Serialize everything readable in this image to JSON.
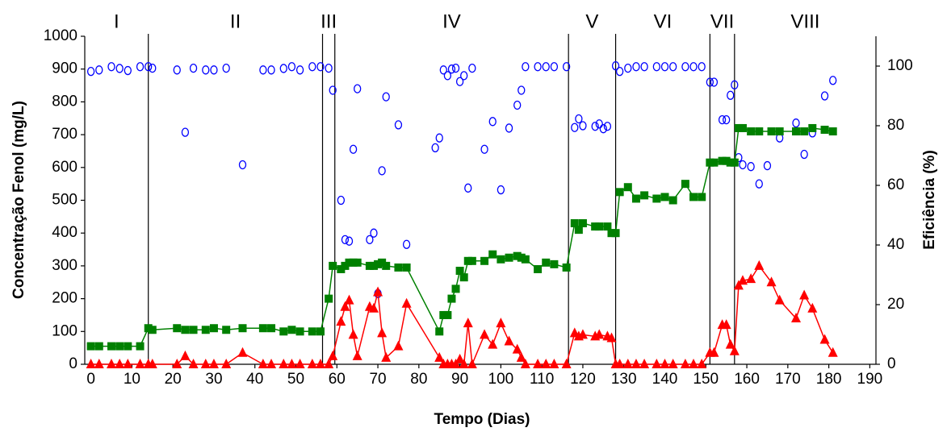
{
  "chart_data": {
    "type": "line",
    "xlabel": "Tempo (Dias)",
    "ylabel": "Concentração Fenol (mg/L)",
    "y2label": "Eficiência (%)",
    "xlim": [
      -1.5,
      191.5
    ],
    "xticks": [
      0,
      10,
      20,
      30,
      40,
      50,
      60,
      70,
      80,
      90,
      100,
      110,
      120,
      130,
      140,
      150,
      160,
      170,
      180,
      190
    ],
    "ylim": [
      0,
      1000
    ],
    "yticks": [
      0,
      100,
      200,
      300,
      400,
      500,
      600,
      700,
      800,
      900,
      1000
    ],
    "y2lim": [
      0,
      110
    ],
    "y2ticks": [
      0,
      20,
      40,
      60,
      80,
      100
    ],
    "phases": [
      {
        "label": "I",
        "end": 14
      },
      {
        "label": "II",
        "end": 56.5
      },
      {
        "label": "III",
        "end": 59.5
      },
      {
        "label": "IV",
        "end": 116.5
      },
      {
        "label": "V",
        "end": 128
      },
      {
        "label": "VI",
        "end": 151
      },
      {
        "label": "VII",
        "end": 157
      },
      {
        "label": "VIII",
        "end": 191.5
      }
    ],
    "series": [
      {
        "color": "#0000ff",
        "marker": "circle",
        "line": false,
        "axis": "y2",
        "x": [
          0,
          2,
          5,
          7,
          9,
          12,
          14,
          15,
          21,
          23,
          25,
          28,
          30,
          33,
          37,
          42,
          44,
          47,
          49,
          51,
          54,
          56,
          58,
          59,
          61,
          62,
          63,
          64,
          65,
          68,
          69,
          70,
          71,
          72,
          75,
          77,
          84,
          85,
          86,
          87,
          88,
          89,
          90,
          91,
          92,
          93,
          96,
          98,
          100,
          102,
          104,
          105,
          106,
          109,
          111,
          113,
          116,
          118,
          119,
          120,
          123,
          124,
          125,
          126,
          128,
          129,
          131,
          133,
          135,
          138,
          140,
          142,
          145,
          147,
          149,
          151,
          152,
          154,
          155,
          156,
          157,
          158,
          159,
          161,
          163,
          165,
          168,
          172,
          174,
          176,
          179,
          181
        ],
        "values": [
          98.2,
          98.7,
          99.8,
          99.2,
          98.5,
          99.8,
          99.8,
          99.3,
          98.7,
          77.8,
          99.3,
          98.7,
          98.7,
          99.3,
          66.9,
          98.7,
          98.7,
          99.2,
          99.8,
          98.7,
          99.8,
          99.8,
          99.3,
          91.9,
          55,
          41.8,
          41.3,
          72.1,
          92.4,
          41.8,
          44,
          23.7,
          64.9,
          89.7,
          80.3,
          40.2,
          72.6,
          75.9,
          98.7,
          96.8,
          99,
          99.3,
          94.8,
          96.8,
          59.1,
          99.3,
          72.1,
          81.4,
          58.5,
          79.2,
          86.9,
          91.9,
          99.8,
          99.8,
          99.8,
          99.8,
          99.8,
          79.4,
          82.3,
          80,
          79.8,
          80.6,
          79,
          79.8,
          100.1,
          98.2,
          99.3,
          99.8,
          99.8,
          99.8,
          99.8,
          99.8,
          99.8,
          99.8,
          99.8,
          94.6,
          94.6,
          82,
          82,
          90.2,
          93.7,
          69.3,
          66.9,
          66.3,
          60.5,
          66.6,
          75.9,
          80.9,
          70.4,
          77.6,
          90,
          95.2
        ]
      },
      {
        "color": "#008000",
        "marker": "square",
        "line": true,
        "axis": "y",
        "x": [
          0,
          2,
          5,
          7,
          9,
          12,
          14,
          15,
          21,
          23,
          25,
          28,
          30,
          33,
          37,
          42,
          44,
          47,
          49,
          51,
          54,
          56,
          58,
          59,
          61,
          62,
          63,
          64,
          65,
          68,
          69,
          70,
          71,
          72,
          75,
          77,
          85,
          86,
          87,
          88,
          89,
          90,
          91,
          92,
          93,
          96,
          98,
          100,
          102,
          104,
          105,
          106,
          109,
          111,
          113,
          116,
          118,
          119,
          120,
          123,
          124,
          126,
          127,
          128,
          129,
          131,
          133,
          135,
          138,
          140,
          142,
          145,
          147,
          149,
          151,
          152,
          154,
          155,
          156,
          157,
          158,
          159,
          161,
          163,
          166,
          168,
          172,
          174,
          176,
          179,
          181
        ],
        "values": [
          55,
          55,
          55,
          55,
          55,
          55,
          110,
          105,
          110,
          105,
          105,
          105,
          110,
          105,
          110,
          110,
          110,
          100,
          105,
          100,
          100,
          100,
          200,
          300,
          290,
          300,
          310,
          310,
          310,
          300,
          300,
          305,
          310,
          300,
          295,
          295,
          100,
          150,
          150,
          200,
          230,
          285,
          265,
          315,
          315,
          315,
          335,
          320,
          325,
          330,
          325,
          320,
          290,
          310,
          305,
          295,
          430,
          410,
          430,
          420,
          420,
          420,
          400,
          400,
          525,
          540,
          505,
          515,
          505,
          510,
          500,
          550,
          510,
          510,
          615,
          615,
          620,
          620,
          615,
          615,
          720,
          720,
          710,
          710,
          710,
          710,
          710,
          710,
          720,
          715,
          710
        ]
      },
      {
        "color": "#ff0000",
        "marker": "triangle",
        "line": true,
        "axis": "y",
        "x": [
          0,
          2,
          5,
          7,
          9,
          12,
          14,
          15,
          21,
          23,
          25,
          28,
          30,
          33,
          37,
          42,
          44,
          47,
          49,
          51,
          54,
          56,
          58,
          59,
          61,
          62,
          63,
          64,
          65,
          68,
          69,
          70,
          71,
          72,
          75,
          77,
          85,
          86,
          87,
          88,
          89,
          90,
          91,
          92,
          93,
          96,
          98,
          100,
          102,
          104,
          105,
          106,
          109,
          111,
          113,
          116,
          118,
          119,
          120,
          123,
          124,
          126,
          127,
          128,
          129,
          131,
          133,
          135,
          138,
          140,
          142,
          145,
          147,
          149,
          151,
          152,
          154,
          155,
          156,
          157,
          158,
          159,
          161,
          163,
          166,
          168,
          172,
          174,
          176,
          179,
          181
        ],
        "values": [
          0,
          0,
          0,
          0,
          0,
          0,
          0,
          0,
          0,
          25,
          0,
          0,
          0,
          0,
          35,
          0,
          0,
          0,
          0,
          0,
          0,
          0,
          0,
          25,
          130,
          175,
          195,
          90,
          25,
          175,
          170,
          220,
          95,
          20,
          55,
          185,
          20,
          0,
          0,
          0,
          0,
          15,
          0,
          125,
          0,
          90,
          60,
          125,
          70,
          45,
          20,
          0,
          0,
          0,
          0,
          0,
          95,
          85,
          90,
          85,
          90,
          85,
          80,
          0,
          0,
          0,
          0,
          0,
          0,
          0,
          0,
          0,
          0,
          0,
          35,
          35,
          120,
          120,
          60,
          40,
          240,
          255,
          260,
          300,
          250,
          195,
          140,
          210,
          170,
          75,
          35
        ]
      }
    ]
  }
}
